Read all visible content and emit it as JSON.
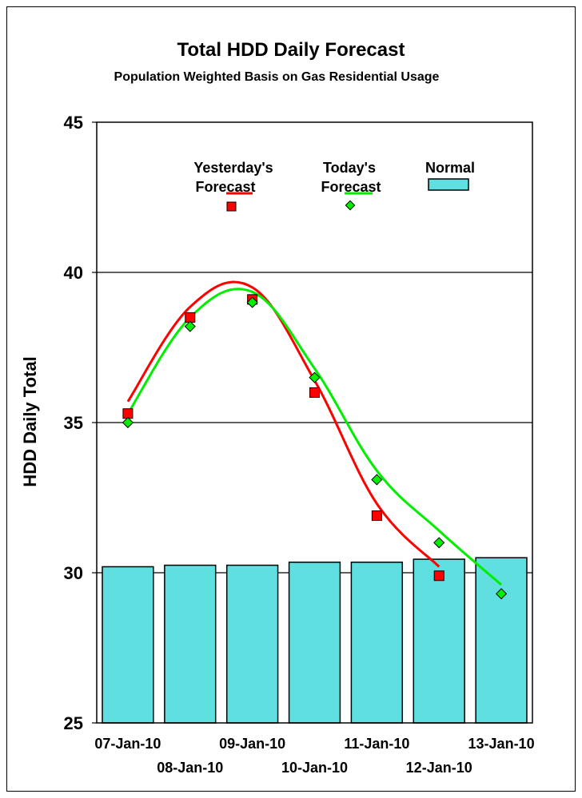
{
  "chart_data": {
    "type": "bar",
    "title": "Total HDD Daily Forecast",
    "subtitle": "Population Weighted Basis on Gas Residential Usage",
    "ylabel": "HDD Daily Total",
    "xlabel": "",
    "ylim": [
      25,
      45
    ],
    "yticks": [
      25,
      30,
      35,
      40,
      45
    ],
    "categories": [
      "07-Jan-10",
      "08-Jan-10",
      "09-Jan-10",
      "10-Jan-10",
      "11-Jan-10",
      "12-Jan-10",
      "13-Jan-10"
    ],
    "grid": true,
    "legend_placement": "top",
    "series": [
      {
        "name": "Normal",
        "kind": "bar",
        "color": "#5fdfdf",
        "values": [
          30.2,
          30.25,
          30.25,
          30.35,
          30.35,
          30.45,
          30.5
        ]
      },
      {
        "name": "Yesterday's Forecast",
        "kind": "line-with-markers",
        "color": "#ff0000",
        "marker": "square",
        "values": [
          35.3,
          38.5,
          39.1,
          36.0,
          31.9,
          29.9,
          null
        ]
      },
      {
        "name": "Today's Forecast",
        "kind": "line-with-markers",
        "color": "#00ee00",
        "marker": "diamond",
        "values": [
          35.0,
          38.2,
          39.0,
          36.5,
          33.1,
          31.0,
          29.3
        ]
      }
    ],
    "legend": [
      {
        "label_line1": "Yesterday's",
        "label_line2": "Forecast"
      },
      {
        "label_line1": "Today's",
        "label_line2": "Forecast"
      },
      {
        "label_line1": "Normal",
        "label_line2": ""
      }
    ]
  }
}
